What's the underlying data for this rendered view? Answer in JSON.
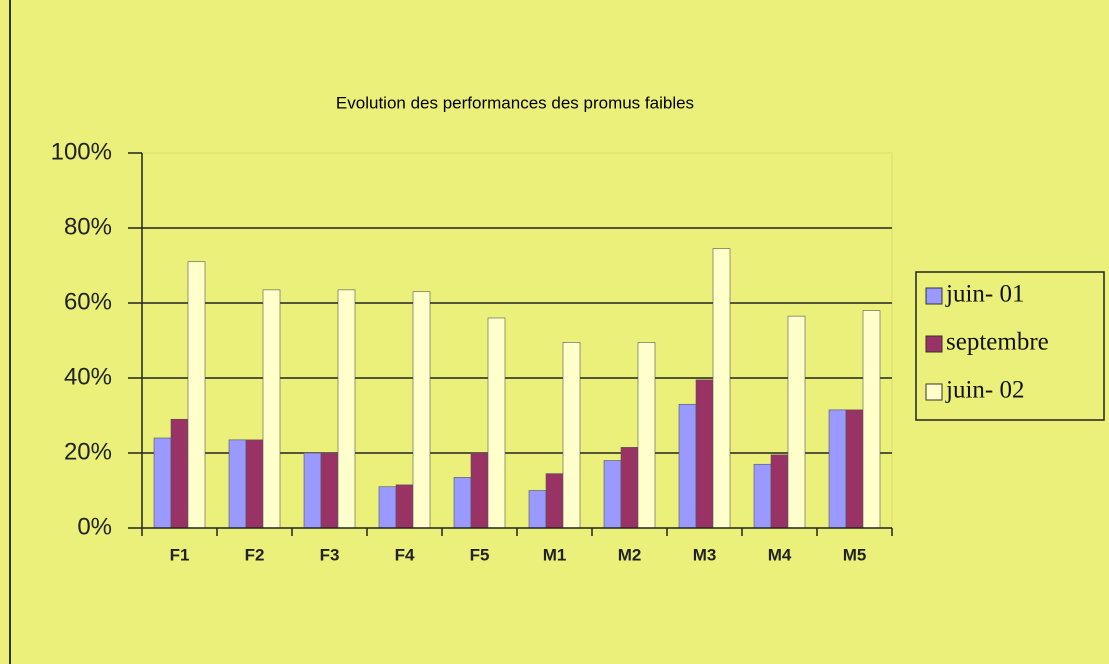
{
  "chart_data": {
    "type": "bar",
    "title": "Evolution des performances des promus faibles",
    "categories": [
      "F1",
      "F2",
      "F3",
      "F4",
      "F5",
      "M1",
      "M2",
      "M3",
      "M4",
      "M5"
    ],
    "series": [
      {
        "name": "juin- 01",
        "color": "#9999ff",
        "values": [
          24,
          23.5,
          20,
          11,
          13.5,
          10,
          18,
          33,
          17,
          31.5
        ]
      },
      {
        "name": "septembre",
        "color": "#993366",
        "values": [
          29,
          23.5,
          20,
          11.5,
          20,
          14.5,
          21.5,
          39.5,
          19.5,
          31.5
        ]
      },
      {
        "name": "juin- 02",
        "color": "#ffffcc",
        "values": [
          71,
          63.5,
          63.5,
          63,
          56,
          49.5,
          49.5,
          74.5,
          56.5,
          58
        ]
      }
    ],
    "ylim": [
      0,
      100
    ],
    "yticks": [
      {
        "value": 0,
        "label": "0%"
      },
      {
        "value": 20,
        "label": "20%"
      },
      {
        "value": 40,
        "label": "40%"
      },
      {
        "value": 60,
        "label": "60%"
      },
      {
        "value": 80,
        "label": "80%"
      },
      {
        "value": 100,
        "label": "100%"
      }
    ],
    "grid": true,
    "legend": "right"
  }
}
